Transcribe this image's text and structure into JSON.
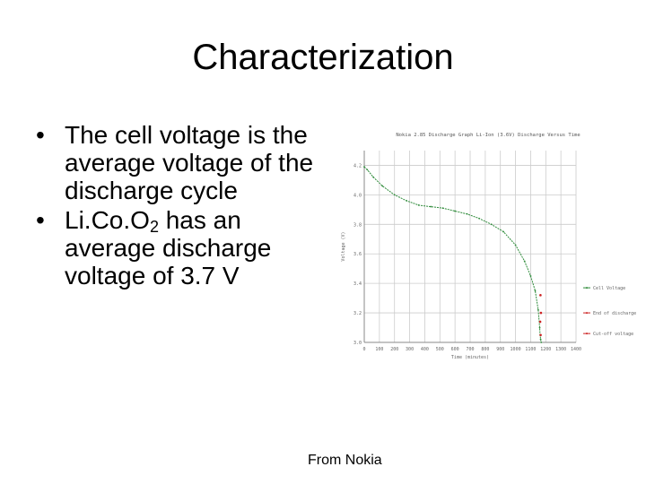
{
  "slide": {
    "title": "Characterization",
    "bullets": [
      {
        "text": "The cell voltage is the average voltage of the discharge cycle"
      },
      {
        "pre": "Li.Co.O",
        "sub": "2",
        "post": " has an average discharge voltage of 3.7 V"
      }
    ],
    "credit": "From Nokia"
  },
  "chart_data": {
    "type": "line",
    "title": "Nokia 2.85 Discharge Graph Li-Ion (3.6V) Discharge Versus Time",
    "xlabel": "Time (minutes)",
    "ylabel": "Voltage (V)",
    "xlim": [
      0,
      1400
    ],
    "ylim": [
      3.0,
      4.3
    ],
    "xticks": [
      0,
      100,
      200,
      300,
      400,
      500,
      600,
      700,
      800,
      900,
      1000,
      1100,
      1200,
      1300,
      1400
    ],
    "yticks": [
      3.0,
      3.2,
      3.4,
      3.6,
      3.8,
      4.0,
      4.2
    ],
    "grid": true,
    "legend_position": "right",
    "series": [
      {
        "name": "Cell Voltage",
        "color": "#2e8b3a",
        "x": [
          0,
          20,
          60,
          120,
          200,
          280,
          360,
          440,
          520,
          600,
          680,
          760,
          840,
          920,
          1000,
          1060,
          1100,
          1130,
          1150,
          1160,
          1163,
          1166,
          1170
        ],
        "y": [
          4.19,
          4.17,
          4.12,
          4.06,
          4.0,
          3.96,
          3.93,
          3.92,
          3.91,
          3.89,
          3.87,
          3.84,
          3.8,
          3.75,
          3.66,
          3.55,
          3.45,
          3.35,
          3.22,
          3.1,
          3.05,
          3.02,
          3.0
        ]
      }
    ],
    "markers": [
      {
        "color": "#cc2222",
        "x": 1163,
        "y": 3.14
      },
      {
        "color": "#cc2222",
        "x": 1166,
        "y": 3.05
      },
      {
        "color": "#cc2222",
        "x": 1168,
        "y": 3.2
      },
      {
        "color": "#cc2222",
        "x": 1165,
        "y": 3.32
      }
    ],
    "legend_entries": [
      "Cell Voltage",
      "End of discharge",
      "Cut-off voltage"
    ],
    "axis_color": "#888888",
    "grid_color": "#cccccc"
  }
}
